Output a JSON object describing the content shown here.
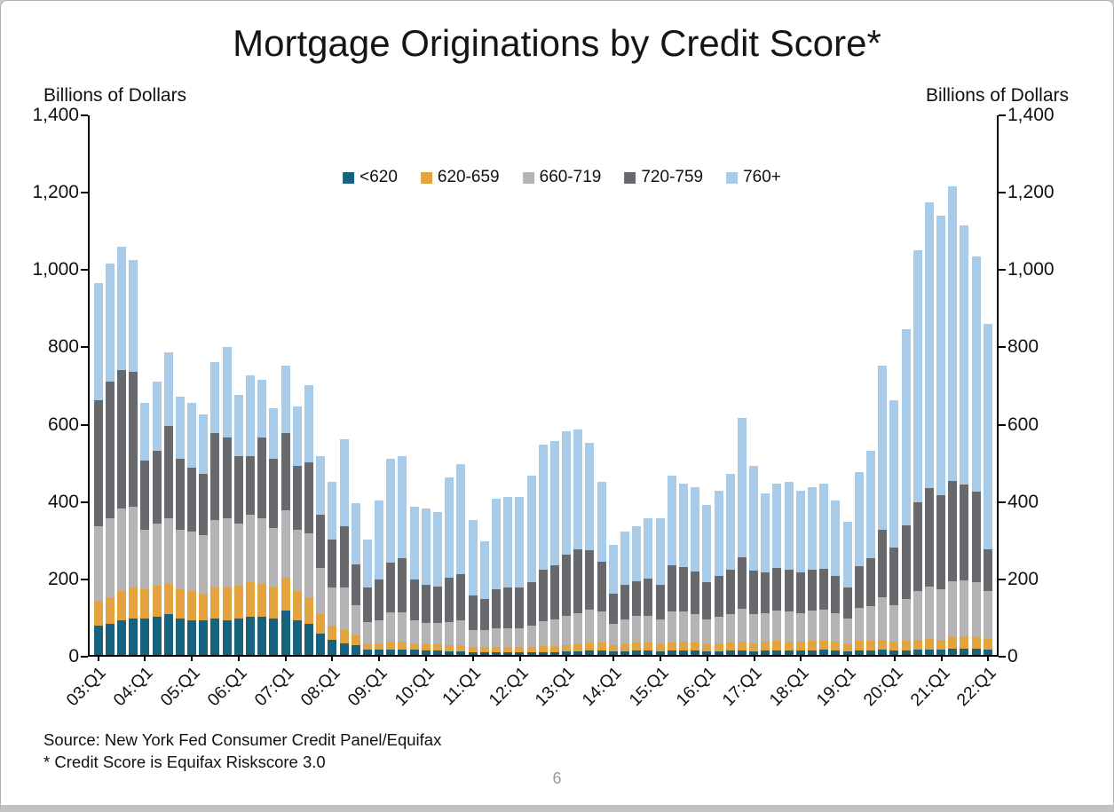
{
  "page": {
    "number": "6"
  },
  "axis_units": {
    "left": "Billions of Dollars",
    "right": "Billions of Dollars"
  },
  "footer": {
    "source_line": "Source: New York Fed Consumer Credit Panel/Equifax",
    "footnote_line": "* Credit Score is Equifax Riskscore 3.0"
  },
  "chart_data": {
    "type": "bar",
    "stacked": true,
    "title": "Mortgage Originations by Credit Score*",
    "xlabel": "",
    "ylabel": "Billions of Dollars",
    "ylim": [
      0,
      1400
    ],
    "grid": false,
    "legend_position": "top-center-inside",
    "yticks": [
      "0",
      "200",
      "400",
      "600",
      "800",
      "1,000",
      "1,200",
      "1,400"
    ],
    "xtick_every": 4,
    "xtick_labels": [
      "03:Q1",
      "04:Q1",
      "05:Q1",
      "06:Q1",
      "07:Q1",
      "08:Q1",
      "09:Q1",
      "10:Q1",
      "11:Q1",
      "12:Q1",
      "13:Q1",
      "14:Q1",
      "15:Q1",
      "16:Q1",
      "17:Q1",
      "18:Q1",
      "19:Q1",
      "20:Q1",
      "21:Q1",
      "22:Q1"
    ],
    "quarters_start": "2003:Q1",
    "quarters_end": "2022:Q1",
    "series": [
      {
        "name": "<620",
        "color": "#17637f",
        "values": [
          75,
          80,
          90,
          95,
          95,
          100,
          105,
          95,
          90,
          90,
          95,
          90,
          95,
          100,
          100,
          95,
          115,
          90,
          80,
          55,
          40,
          30,
          25,
          15,
          15,
          15,
          15,
          15,
          12,
          12,
          10,
          10,
          8,
          8,
          8,
          8,
          8,
          8,
          8,
          8,
          10,
          10,
          12,
          12,
          10,
          10,
          12,
          12,
          10,
          12,
          12,
          12,
          10,
          10,
          12,
          12,
          10,
          12,
          12,
          12,
          12,
          12,
          14,
          12,
          10,
          12,
          12,
          14,
          12,
          12,
          14,
          14,
          14,
          16,
          16,
          16,
          14
        ]
      },
      {
        "name": "620-659",
        "color": "#e3a33f",
        "values": [
          65,
          70,
          75,
          80,
          75,
          80,
          80,
          75,
          75,
          70,
          80,
          85,
          85,
          90,
          85,
          80,
          85,
          75,
          70,
          50,
          35,
          35,
          25,
          15,
          15,
          20,
          20,
          15,
          15,
          15,
          15,
          15,
          12,
          12,
          12,
          12,
          12,
          12,
          14,
          14,
          16,
          18,
          20,
          20,
          15,
          18,
          20,
          20,
          18,
          20,
          22,
          20,
          18,
          20,
          20,
          22,
          20,
          22,
          24,
          22,
          22,
          24,
          24,
          22,
          20,
          24,
          24,
          26,
          22,
          24,
          26,
          28,
          26,
          30,
          32,
          32,
          28
        ]
      },
      {
        "name": "660-719",
        "color": "#b4b4b6",
        "values": [
          195,
          205,
          215,
          210,
          155,
          160,
          170,
          155,
          155,
          150,
          175,
          180,
          160,
          175,
          170,
          155,
          175,
          160,
          165,
          120,
          100,
          110,
          80,
          55,
          60,
          75,
          75,
          60,
          55,
          55,
          60,
          65,
          45,
          45,
          50,
          50,
          50,
          55,
          65,
          70,
          75,
          80,
          85,
          80,
          55,
          65,
          70,
          70,
          65,
          80,
          80,
          75,
          65,
          70,
          75,
          85,
          75,
          75,
          80,
          78,
          75,
          80,
          80,
          75,
          65,
          85,
          90,
          110,
          95,
          110,
          125,
          135,
          130,
          145,
          145,
          140,
          123
        ]
      },
      {
        "name": "720-759",
        "color": "#67696d",
        "values": [
          325,
          355,
          360,
          350,
          180,
          190,
          240,
          185,
          165,
          160,
          225,
          210,
          175,
          150,
          210,
          180,
          200,
          165,
          185,
          140,
          125,
          160,
          105,
          90,
          105,
          130,
          140,
          105,
          100,
          95,
          115,
          120,
          90,
          80,
          100,
          105,
          105,
          115,
          135,
          140,
          160,
          165,
          155,
          130,
          80,
          90,
          90,
          95,
          90,
          120,
          115,
          110,
          95,
          105,
          115,
          135,
          115,
          105,
          110,
          110,
          105,
          105,
          105,
          95,
          80,
          110,
          125,
          175,
          150,
          190,
          230,
          255,
          245,
          260,
          250,
          235,
          110
        ]
      },
      {
        "name": "760+",
        "color": "#a7cbe9",
        "values": [
          305,
          305,
          320,
          290,
          150,
          180,
          190,
          160,
          170,
          155,
          185,
          235,
          160,
          210,
          150,
          130,
          175,
          155,
          200,
          150,
          150,
          225,
          160,
          125,
          205,
          270,
          265,
          190,
          198,
          193,
          260,
          285,
          195,
          150,
          235,
          235,
          235,
          275,
          323,
          323,
          319,
          312,
          278,
          208,
          125,
          137,
          143,
          158,
          172,
          233,
          216,
          218,
          202,
          220,
          248,
          361,
          270,
          206,
          219,
          228,
          211,
          214,
          222,
          196,
          170,
          244,
          279,
          425,
          381,
          509,
          655,
          743,
          725,
          764,
          672,
          612,
          585
        ]
      }
    ]
  }
}
